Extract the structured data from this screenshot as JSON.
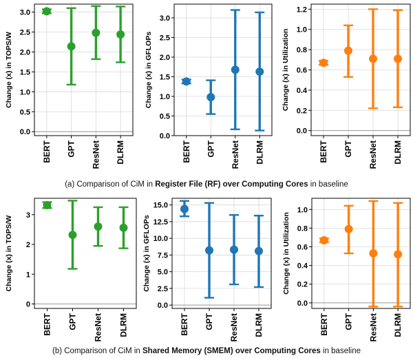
{
  "colors": {
    "green": "#2ca02c",
    "blue": "#1f77b4",
    "orange": "#ff7f0e"
  },
  "captions": [
    {
      "pre": "(a) Comparison of CiM in ",
      "bold": "Register File (RF) over Computing Cores",
      "post": " in baseline"
    },
    {
      "pre": "(b) Comparison of CiM in ",
      "bold": "Shared Memory (SMEM) over Computing Cores",
      "post": " in baseline"
    }
  ],
  "chart_data": [
    {
      "type": "errorbar",
      "color": "green",
      "ylabel": "Change (x) in TOPS/W",
      "categories": [
        "BERT",
        "GPT",
        "ResNet",
        "DLRM"
      ],
      "values": [
        3.02,
        2.14,
        2.48,
        2.44
      ],
      "low": [
        2.97,
        1.18,
        1.82,
        1.74
      ],
      "high": [
        3.07,
        3.1,
        3.15,
        3.14
      ],
      "ylim": [
        -0.1,
        3.2
      ],
      "yticks": [
        0.0,
        0.5,
        1.0,
        1.5,
        2.0,
        2.5,
        3.0
      ],
      "ytick_labels": [
        "0.0",
        "0.5",
        "1.0",
        "1.5",
        "2.0",
        "2.5",
        "3.0"
      ],
      "grid": true
    },
    {
      "type": "errorbar",
      "color": "blue",
      "ylabel": "Change (x) in GFLOPs",
      "categories": [
        "BERT",
        "GPT",
        "ResNet",
        "DLRM"
      ],
      "values": [
        1.38,
        0.98,
        1.68,
        1.63
      ],
      "low": [
        1.33,
        0.55,
        0.16,
        0.13
      ],
      "high": [
        1.43,
        1.41,
        3.2,
        3.14
      ],
      "ylim": [
        0.0,
        3.35
      ],
      "yticks": [
        0.0,
        0.5,
        1.0,
        1.5,
        2.0,
        2.5,
        3.0
      ],
      "ytick_labels": [
        "0.0",
        "0.5",
        "1.0",
        "1.5",
        "2.0",
        "2.5",
        "3.0"
      ],
      "grid": true
    },
    {
      "type": "errorbar",
      "color": "orange",
      "ylabel": "Change (x) in Utilization",
      "categories": [
        "BERT",
        "GPT",
        "ResNet",
        "DLRM"
      ],
      "values": [
        0.67,
        0.79,
        0.71,
        0.71
      ],
      "low": [
        0.65,
        0.53,
        0.22,
        0.23
      ],
      "high": [
        0.69,
        1.04,
        1.2,
        1.19
      ],
      "ylim": [
        -0.05,
        1.25
      ],
      "yticks": [
        0.0,
        0.2,
        0.4,
        0.6,
        0.8,
        1.0,
        1.2
      ],
      "ytick_labels": [
        "0.0",
        "0.2",
        "0.4",
        "0.6",
        "0.8",
        "1.0",
        "1.2"
      ],
      "grid": true
    },
    {
      "type": "errorbar",
      "color": "green",
      "ylabel": "Change (x) in TOPS/W",
      "categories": [
        "BERT",
        "GPT",
        "ResNet",
        "DLRM"
      ],
      "values": [
        3.32,
        2.32,
        2.6,
        2.56
      ],
      "low": [
        3.22,
        1.18,
        1.95,
        1.87
      ],
      "high": [
        3.42,
        3.47,
        3.25,
        3.25
      ],
      "ylim": [
        -0.15,
        3.55
      ],
      "yticks": [
        0,
        1,
        2,
        3
      ],
      "ytick_labels": [
        "0",
        "1",
        "2",
        "3"
      ],
      "grid": false
    },
    {
      "type": "errorbar",
      "color": "blue",
      "ylabel": "Change (x) in GFLOPs",
      "categories": [
        "BERT",
        "GPT",
        "ResNet",
        "DLRM"
      ],
      "values": [
        14.4,
        8.2,
        8.3,
        8.1
      ],
      "low": [
        13.3,
        1.1,
        3.1,
        2.7
      ],
      "high": [
        15.6,
        15.3,
        13.5,
        13.4
      ],
      "ylim": [
        -0.5,
        16.0
      ],
      "yticks": [
        0.0,
        2.5,
        5.0,
        7.5,
        10.0,
        12.5,
        15.0
      ],
      "ytick_labels": [
        "0.0",
        "2.5",
        "5.0",
        "7.5",
        "10.0",
        "12.5",
        "15.0"
      ],
      "grid": true
    },
    {
      "type": "errorbar",
      "color": "orange",
      "ylabel": "Change (x) in Utilization",
      "categories": [
        "BERT",
        "GPT",
        "ResNet",
        "DLRM"
      ],
      "values": [
        0.67,
        0.79,
        0.53,
        0.52
      ],
      "low": [
        0.65,
        0.53,
        -0.04,
        -0.04
      ],
      "high": [
        0.69,
        1.04,
        1.09,
        1.07
      ],
      "ylim": [
        -0.06,
        1.12
      ],
      "yticks": [
        0.0,
        0.2,
        0.4,
        0.6,
        0.8,
        1.0
      ],
      "ytick_labels": [
        "0.0",
        "0.2",
        "0.4",
        "0.6",
        "0.8",
        "1.0"
      ],
      "grid": true
    }
  ]
}
